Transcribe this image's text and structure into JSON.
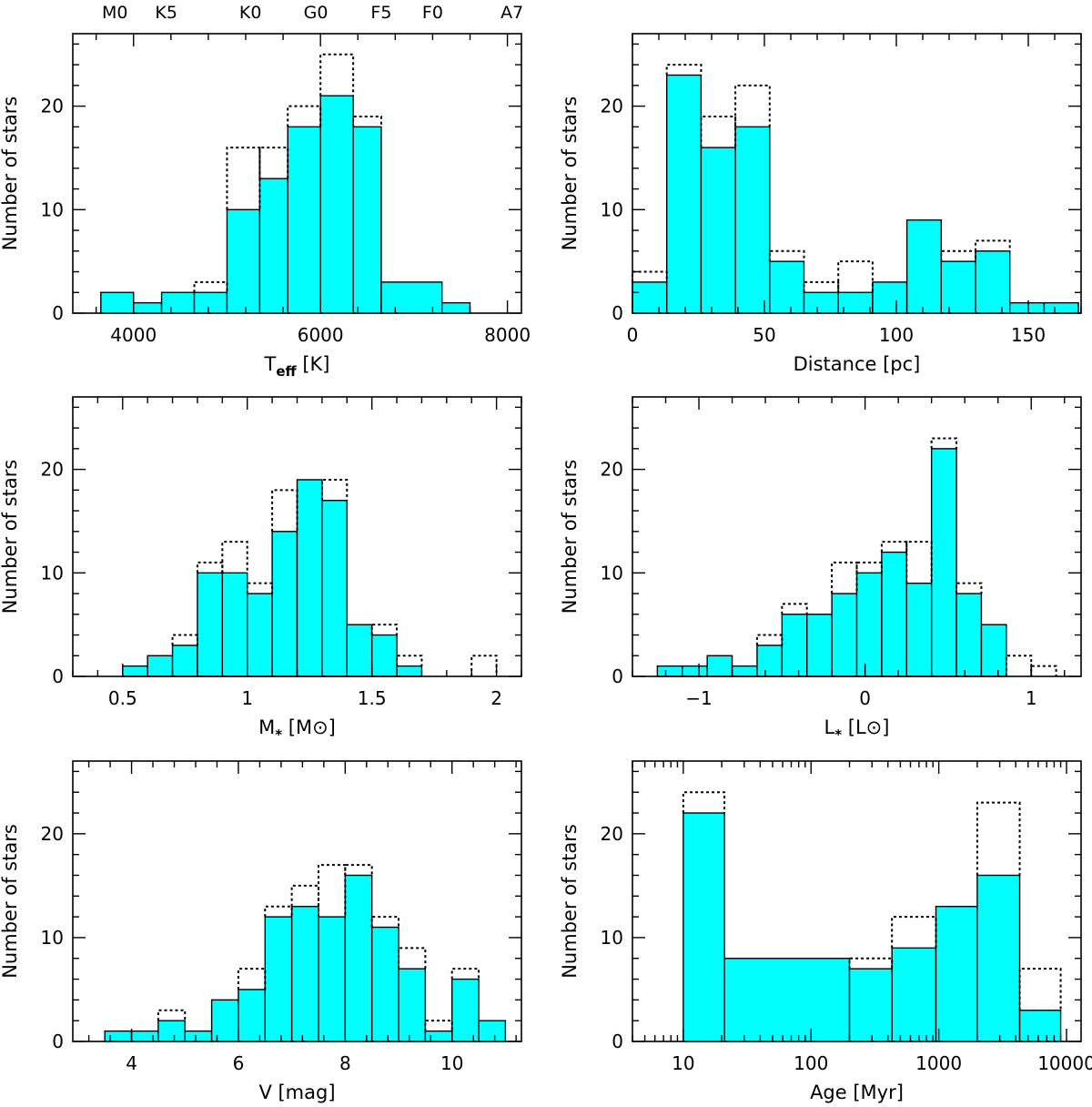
{
  "chart_data": [
    {
      "id": "teff",
      "type": "histogram",
      "xlabel": "T",
      "xlabel_sub": "eff",
      "xlabel_tail": "[K]",
      "ylabel": "Number of stars",
      "xlim": [
        3350,
        8150
      ],
      "ylim": [
        0,
        27
      ],
      "xticks": [
        4000,
        6000,
        8000
      ],
      "xtick_labels": [
        "4000",
        "6000",
        "8000"
      ],
      "yticks": [
        0,
        10,
        20
      ],
      "ytick_labels": [
        "0",
        "10",
        "20"
      ],
      "spectral_types": [
        {
          "label": "M0",
          "teff": 3800
        },
        {
          "label": "K5",
          "teff": 4350
        },
        {
          "label": "K0",
          "teff": 5250
        },
        {
          "label": "G0",
          "teff": 5950
        },
        {
          "label": "F5",
          "teff": 6650
        },
        {
          "label": "F0",
          "teff": 7200
        },
        {
          "label": "A7",
          "teff": 8050
        }
      ],
      "bin_edges": [
        3650,
        4000,
        4300,
        4650,
        5000,
        5350,
        5650,
        6000,
        6350,
        6650,
        7300,
        7600
      ],
      "filled": [
        2,
        1,
        2,
        2,
        10,
        13,
        18,
        21,
        18,
        3,
        1
      ],
      "dotted": [
        2,
        1,
        2,
        3,
        16,
        16,
        20,
        25,
        19,
        3,
        1
      ]
    },
    {
      "id": "distance",
      "type": "histogram",
      "xlabel": "Distance [pc]",
      "ylabel": "Number of stars",
      "xlim": [
        0,
        170
      ],
      "ylim": [
        0,
        27
      ],
      "xticks": [
        0,
        50,
        100,
        150
      ],
      "xtick_labels": [
        "0",
        "50",
        "100",
        "150"
      ],
      "yticks": [
        0,
        10,
        20
      ],
      "ytick_labels": [
        "0",
        "10",
        "20"
      ],
      "bin_edges": [
        0,
        13,
        26,
        39,
        52,
        65,
        78,
        91,
        104,
        117,
        130,
        143,
        156,
        169
      ],
      "filled": [
        3,
        23,
        16,
        18,
        5,
        2,
        2,
        3,
        9,
        5,
        6,
        1,
        1
      ],
      "dotted": [
        4,
        24,
        19,
        22,
        6,
        3,
        5,
        3,
        9,
        6,
        7,
        1,
        1
      ]
    },
    {
      "id": "mass",
      "type": "histogram",
      "xlabel": "M",
      "xlabel_sub": "*",
      "xlabel_tail": "[M⊙]",
      "ylabel": "Number of stars",
      "xlim": [
        0.3,
        2.1
      ],
      "ylim": [
        0,
        27
      ],
      "xticks": [
        0.5,
        1,
        1.5,
        2
      ],
      "xtick_labels": [
        "0.5",
        "1",
        "1.5",
        "2"
      ],
      "yticks": [
        0,
        10,
        20
      ],
      "ytick_labels": [
        "0",
        "10",
        "20"
      ],
      "bin_edges": [
        0.5,
        0.6,
        0.7,
        0.8,
        0.9,
        1.0,
        1.1,
        1.2,
        1.3,
        1.4,
        1.5,
        1.6,
        1.7,
        1.8,
        1.9,
        2.0
      ],
      "filled": [
        1,
        2,
        3,
        10,
        10,
        8,
        14,
        19,
        17,
        5,
        4,
        1,
        0,
        0,
        0
      ],
      "dotted": [
        1,
        2,
        4,
        11,
        13,
        9,
        18,
        19,
        19,
        5,
        5,
        2,
        0,
        0,
        2
      ]
    },
    {
      "id": "luminosity",
      "type": "histogram",
      "xlabel": "L",
      "xlabel_sub": "*",
      "xlabel_tail": "[L⊙]",
      "ylabel": "Number of stars",
      "xlim": [
        -1.4,
        1.3
      ],
      "ylim": [
        0,
        27
      ],
      "xticks": [
        -1,
        0,
        1
      ],
      "xtick_labels": [
        "−1",
        "0",
        "1"
      ],
      "yticks": [
        0,
        10,
        20
      ],
      "ytick_labels": [
        "0",
        "10",
        "20"
      ],
      "bin_edges": [
        -1.25,
        -1.1,
        -0.95,
        -0.8,
        -0.65,
        -0.5,
        -0.35,
        -0.2,
        -0.05,
        0.1,
        0.25,
        0.4,
        0.55,
        0.7,
        0.85,
        1.0,
        1.15
      ],
      "filled": [
        1,
        1,
        2,
        1,
        3,
        6,
        6,
        8,
        10,
        12,
        9,
        22,
        8,
        5,
        0,
        0
      ],
      "dotted": [
        1,
        1,
        2,
        1,
        4,
        7,
        6,
        11,
        11,
        13,
        13,
        23,
        9,
        5,
        2,
        1
      ]
    },
    {
      "id": "vmag",
      "type": "histogram",
      "xlabel": "V [mag]",
      "ylabel": "Number of stars",
      "xlim": [
        2.9,
        11.3
      ],
      "ylim": [
        0,
        27
      ],
      "xticks": [
        4,
        6,
        8,
        10
      ],
      "xtick_labels": [
        "4",
        "6",
        "8",
        "10"
      ],
      "yticks": [
        0,
        10,
        20
      ],
      "ytick_labels": [
        "0",
        "10",
        "20"
      ],
      "bin_edges": [
        3.5,
        4.0,
        4.5,
        5.0,
        5.5,
        6.0,
        6.5,
        7.0,
        7.5,
        8.0,
        8.5,
        9.0,
        9.5,
        10.0,
        10.5,
        11.0
      ],
      "filled": [
        1,
        1,
        2,
        1,
        4,
        5,
        12,
        13,
        12,
        16,
        11,
        7,
        1,
        6,
        2
      ],
      "dotted": [
        1,
        1,
        3,
        1,
        4,
        7,
        13,
        15,
        17,
        17,
        12,
        9,
        2,
        7,
        2
      ]
    },
    {
      "id": "age",
      "type": "histogram",
      "xscale": "log",
      "xlabel": "Age [Myr]",
      "ylabel": "Number of stars",
      "xlim": [
        4,
        13000
      ],
      "ylim": [
        0,
        27
      ],
      "xticks": [
        10,
        100,
        1000,
        10000
      ],
      "xtick_labels": [
        "10",
        "100",
        "1000",
        "10000"
      ],
      "yticks": [
        0,
        10,
        20
      ],
      "ytick_labels": [
        "0",
        "10",
        "20"
      ],
      "bin_edges": [
        10,
        21,
        200,
        430,
        950,
        2000,
        4300,
        9000
      ],
      "filled": [
        22,
        8,
        7,
        9,
        13,
        16,
        3
      ],
      "dotted": [
        24,
        8,
        8,
        12,
        13,
        23,
        7
      ]
    }
  ],
  "colors": {
    "fill": "#00ffff",
    "line": "#000000"
  }
}
